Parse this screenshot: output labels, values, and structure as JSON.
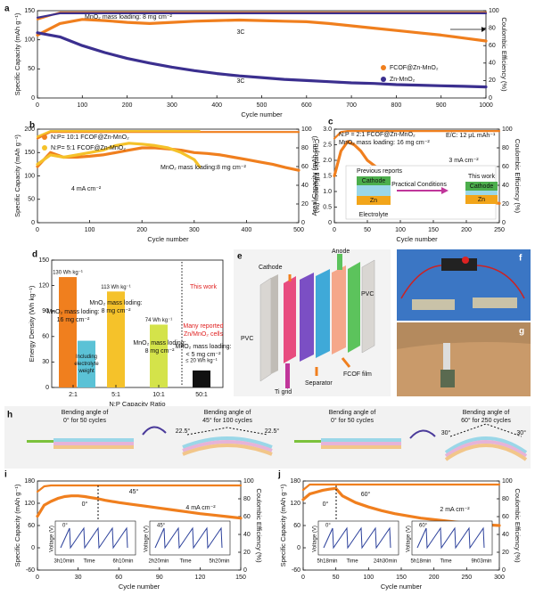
{
  "chart_data": [
    {
      "type": "line",
      "label": "a",
      "x_label": "Cycle number",
      "y_label": "Specific Capacity (mAh g⁻¹)",
      "y2_label": "Coulombic Efficiency (%)",
      "x": [
        0,
        50,
        100,
        150,
        200,
        250,
        300,
        350,
        400,
        450,
        500,
        550,
        600,
        650,
        700,
        750,
        800,
        850,
        900,
        950,
        1000
      ],
      "series": [
        {
          "name": "FCOF@Zn-MnO₂",
          "color": "#f07f1e",
          "values": [
            108,
            128,
            135,
            133,
            130,
            128,
            130,
            132,
            133,
            134,
            133,
            132,
            131,
            128,
            124,
            120,
            116,
            112,
            108,
            103,
            98
          ]
        },
        {
          "name": "Zn-MnO₂",
          "color": "#3b2f8f",
          "values": [
            112,
            105,
            90,
            78,
            68,
            60,
            53,
            47,
            42,
            38,
            35,
            32,
            30,
            28,
            26,
            25,
            23,
            22,
            21,
            20,
            19
          ]
        },
        {
          "color": "#f07f1e",
          "axis": "y2",
          "values": [
            90,
            98,
            98,
            98,
            98,
            98,
            98,
            98,
            98,
            98,
            98,
            98,
            98,
            98,
            98,
            98,
            98,
            98,
            98,
            98,
            98
          ]
        },
        {
          "color": "#3b2f8f",
          "axis": "y2",
          "values": [
            92,
            97,
            97,
            97,
            97,
            97,
            97,
            97,
            97,
            97,
            97,
            97,
            97,
            97,
            97,
            97,
            97,
            97,
            97,
            97,
            97
          ]
        }
      ],
      "xlim": [
        0,
        1000
      ],
      "ylim": [
        0,
        150
      ],
      "y2lim": [
        0,
        100
      ],
      "xticks": [
        0,
        100,
        200,
        300,
        400,
        500,
        600,
        700,
        800,
        900,
        1000
      ],
      "yticks": [
        0,
        50,
        100,
        150
      ],
      "y2ticks": [
        0,
        20,
        40,
        60,
        80,
        100
      ],
      "annotations": [
        "MnO₂ mass loading: 8 mg cm⁻²",
        "3C",
        "3C"
      ]
    },
    {
      "type": "line",
      "label": "b",
      "x_label": "Cycle number",
      "y_label": "Specific Capacity (mAh g⁻¹)",
      "y2_label": "Coulombic Efficiency (%)",
      "x": [
        0,
        25,
        50,
        75,
        100,
        125,
        150,
        175,
        200,
        225,
        250,
        275,
        300,
        325,
        350,
        375,
        400,
        425,
        450,
        475,
        500
      ],
      "series": [
        {
          "name": "N:P= 10:1   FCOF@Zn-MnO₂",
          "color": "#f07f1e",
          "values": [
            120,
            150,
            140,
            140,
            142,
            145,
            150,
            155,
            160,
            160,
            158,
            155,
            150,
            148,
            145,
            140,
            135,
            130,
            125,
            118,
            112
          ]
        },
        {
          "name": "N:P= 5:1    FCOF@Zn-MnO₂",
          "color": "#f5c22a",
          "x": [
            0,
            25,
            50,
            75,
            100,
            125,
            150,
            175,
            200,
            225,
            250,
            275,
            300,
            310
          ],
          "values": [
            125,
            145,
            140,
            145,
            150,
            155,
            165,
            170,
            168,
            165,
            160,
            150,
            135,
            120
          ]
        },
        {
          "color": "#f07f1e",
          "axis": "y2",
          "values": [
            90,
            97,
            97,
            97,
            97,
            97,
            97,
            97,
            97,
            97,
            97,
            97,
            97,
            97,
            97,
            97,
            97,
            97,
            97,
            97,
            97
          ]
        },
        {
          "color": "#f5c22a",
          "axis": "y2",
          "x": [
            0,
            25,
            50,
            75,
            100,
            125,
            150,
            175,
            200,
            225,
            250,
            275,
            300,
            310
          ],
          "values": [
            92,
            98,
            98,
            98,
            98,
            98,
            98,
            98,
            98,
            98,
            98,
            98,
            98,
            98
          ]
        }
      ],
      "xlim": [
        0,
        500
      ],
      "ylim": [
        0,
        200
      ],
      "y2lim": [
        0,
        100
      ],
      "xticks": [
        0,
        100,
        200,
        300,
        400,
        500
      ],
      "yticks": [
        0,
        50,
        100,
        150,
        200
      ],
      "y2ticks": [
        0,
        20,
        40,
        60,
        80,
        100
      ],
      "annotations": [
        "MnO₂ mass loading:8 mg cm⁻²",
        "4 mA cm⁻²"
      ]
    },
    {
      "type": "line",
      "label": "c",
      "x_label": "Cycle number",
      "y_label": "Areal Capacity (mAh cm⁻²)",
      "y2_label": "Coulombic Efficiency (%)",
      "x": [
        0,
        10,
        20,
        30,
        40,
        50,
        75,
        100,
        125,
        150,
        175,
        200,
        225,
        250
      ],
      "series": [
        {
          "color": "#f07f1e",
          "values": [
            1.5,
            2.3,
            2.6,
            2.5,
            2.3,
            2.0,
            1.6,
            1.3,
            1.1,
            0.95,
            0.85,
            0.75,
            0.68,
            0.62
          ]
        },
        {
          "color": "#f07f1e",
          "axis": "y2",
          "values": [
            90,
            97,
            98,
            98,
            98,
            98,
            98,
            98,
            98,
            98,
            98,
            98,
            98,
            98
          ]
        }
      ],
      "xlim": [
        0,
        250
      ],
      "ylim": [
        0,
        3
      ],
      "y2lim": [
        0,
        100
      ],
      "xticks": [
        0,
        50,
        100,
        150,
        200,
        250
      ],
      "yticks": [
        0,
        0.5,
        {
          "value": 1,
          "label": "1.0"
        },
        1.5,
        {
          "value": 2,
          "label": "2.0"
        },
        2.5,
        {
          "value": 3,
          "label": "3.0"
        }
      ],
      "y2ticks": [
        0,
        20,
        40,
        60,
        80,
        100
      ],
      "annotations": [
        "N:P = 2:1   FCOF@Zn-MnO₂",
        "MnO₂ mass loading: 16 mg cm⁻²",
        "E/C: 12 μL mAh⁻¹",
        "3 mA cm⁻²",
        "Previous reports",
        "Cathode",
        "Zn",
        "Electrolyte",
        "Practical Conditions",
        "This work",
        "Cathode",
        "Zn"
      ]
    },
    {
      "type": "bar",
      "label": "d",
      "x_label": "N:P Capacity Ratio",
      "y_label": "Energy Density (Wh kg⁻¹)",
      "categories": [
        "2:1",
        "5:1",
        "10:1",
        "50:1"
      ],
      "values": [
        130,
        113,
        74,
        20
      ],
      "colors": [
        "#f07f1e",
        "#f5c22a",
        "#d4e34a",
        "#111111"
      ],
      "value_labels": [
        "130 Wh kg⁻¹",
        "113 Wh kg⁻¹",
        "74 Wh kg⁻¹",
        "≤ 20 Wh kg⁻¹"
      ],
      "extra_bar": {
        "value": 55,
        "color": "#5bc2d6",
        "label": [
          "Including",
          "electrolyte",
          "weight"
        ]
      },
      "ylim": [
        0,
        150
      ],
      "yticks": [
        0,
        30,
        60,
        90,
        120,
        150
      ],
      "annotations": [
        {
          "text": "This work",
          "color": "#e02020"
        },
        "MnO₂ mass loding:",
        "16 mg cm⁻²",
        "MnO₂ mass loding:",
        "8 mg cm⁻²",
        "MnO₂ mass loding:",
        "8 mg cm⁻²",
        {
          "text": "Many reported",
          "color": "#e02020"
        },
        {
          "text": "Zn/MnO₂ cells",
          "color": "#e02020"
        },
        "MnO₂ mass loading:",
        "< 5 mg cm⁻²"
      ]
    },
    {
      "type": "line",
      "label": "i",
      "x_label": "Cycle number",
      "y_label": "Specific Capacity (mAh g⁻¹)",
      "y2_label": "Coulombic Efficiency (%)",
      "x": [
        0,
        5,
        10,
        15,
        20,
        25,
        30,
        35,
        40,
        45,
        50,
        60,
        70,
        80,
        90,
        100,
        110,
        120,
        130,
        140,
        150
      ],
      "series": [
        {
          "color": "#f07f1e",
          "values": [
            85,
            115,
            125,
            133,
            138,
            140,
            140,
            138,
            135,
            132,
            128,
            122,
            117,
            112,
            107,
            102,
            97,
            92,
            88,
            84,
            80
          ]
        },
        {
          "color": "#f07f1e",
          "axis": "y2",
          "values": [
            88,
            94,
            95,
            95,
            95,
            95,
            95,
            95,
            95,
            95,
            95,
            95,
            95,
            95,
            95,
            95,
            95,
            95,
            95,
            95,
            95
          ]
        }
      ],
      "xlim": [
        0,
        150
      ],
      "ylim": [
        -60,
        180
      ],
      "y2lim": [
        0,
        100
      ],
      "xticks": [
        0,
        30,
        60,
        90,
        120,
        150
      ],
      "yticks": [
        -60,
        0,
        60,
        120,
        180
      ],
      "y2ticks": [
        0,
        20,
        40,
        60,
        80,
        100
      ],
      "annotations": [
        "0°",
        "45°",
        "4 mA cm⁻²",
        "0°",
        "Voltage (V)",
        "3h10min",
        "Time",
        "6h10min",
        "45°",
        "Voltage (V)",
        "2h20min",
        "Time",
        "5h20min"
      ]
    },
    {
      "type": "line",
      "label": "j",
      "x_label": "Cycle number",
      "y_label": "Specific Capacity (mAh g⁻¹)",
      "y2_label": "Coulombic Efficiency (%)",
      "x": [
        0,
        10,
        20,
        30,
        40,
        50,
        60,
        80,
        100,
        120,
        140,
        160,
        180,
        200,
        220,
        240,
        260,
        280,
        300
      ],
      "series": [
        {
          "color": "#f07f1e",
          "values": [
            130,
            145,
            150,
            155,
            158,
            160,
            140,
            122,
            110,
            100,
            92,
            86,
            80,
            76,
            72,
            68,
            65,
            62,
            60
          ]
        },
        {
          "color": "#f07f1e",
          "axis": "y2",
          "values": [
            90,
            96,
            96,
            96,
            96,
            96,
            96,
            96,
            96,
            96,
            96,
            96,
            96,
            96,
            96,
            96,
            96,
            96,
            96
          ]
        }
      ],
      "xlim": [
        0,
        300
      ],
      "ylim": [
        -60,
        180
      ],
      "y2lim": [
        0,
        100
      ],
      "xticks": [
        0,
        50,
        100,
        150,
        200,
        250,
        300
      ],
      "yticks": [
        -60,
        0,
        60,
        120,
        180
      ],
      "y2ticks": [
        0,
        20,
        40,
        60,
        80,
        100
      ],
      "annotations": [
        "0°",
        "60°",
        "2 mA cm⁻²",
        "0°",
        "Voltage (V)",
        "5h18min",
        "Time",
        "24h30min",
        "60°",
        "Voltage (V)",
        "5h18min",
        "Time",
        "9h03min"
      ]
    }
  ],
  "panel_e": {
    "label": "e",
    "texts": [
      "Cathode",
      "Anode",
      "PVC",
      "PVC",
      "Ti grid",
      "Separator",
      "FCOF film"
    ]
  },
  "panel_f": {
    "label": "f"
  },
  "panel_g": {
    "label": "g"
  },
  "panel_h": {
    "label": "h",
    "texts": [
      "Bending angle of",
      "0° for 50 cycles",
      "Bending angle of",
      "45° for 100 cycles",
      "22.5°",
      "22.5°",
      "Bending angle of",
      "0° for 50 cycles",
      "Bending angle of",
      "60° for 250 cycles",
      "30°",
      "30°"
    ]
  }
}
